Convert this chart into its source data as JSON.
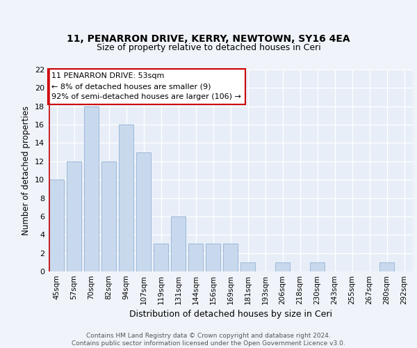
{
  "title1": "11, PENARRON DRIVE, KERRY, NEWTOWN, SY16 4EA",
  "title2": "Size of property relative to detached houses in Ceri",
  "xlabel": "Distribution of detached houses by size in Ceri",
  "ylabel": "Number of detached properties",
  "categories": [
    "45sqm",
    "57sqm",
    "70sqm",
    "82sqm",
    "94sqm",
    "107sqm",
    "119sqm",
    "131sqm",
    "144sqm",
    "156sqm",
    "169sqm",
    "181sqm",
    "193sqm",
    "206sqm",
    "218sqm",
    "230sqm",
    "243sqm",
    "255sqm",
    "267sqm",
    "280sqm",
    "292sqm"
  ],
  "values": [
    10,
    12,
    18,
    12,
    16,
    13,
    3,
    6,
    3,
    3,
    3,
    1,
    0,
    1,
    0,
    1,
    0,
    0,
    0,
    1,
    0
  ],
  "bar_color": "#c9d9ed",
  "bar_edge_color": "#9ab8d8",
  "annotation_text": "11 PENARRON DRIVE: 53sqm\n← 8% of detached houses are smaller (9)\n92% of semi-detached houses are larger (106) →",
  "annotation_box_color": "#ffffff",
  "annotation_box_edge": "#cc0000",
  "ylim": [
    0,
    22
  ],
  "yticks": [
    0,
    2,
    4,
    6,
    8,
    10,
    12,
    14,
    16,
    18,
    20,
    22
  ],
  "bg_color": "#f0f4fa",
  "plot_bg_color": "#e8eef8",
  "footer": "Contains HM Land Registry data © Crown copyright and database right 2024.\nContains public sector information licensed under the Open Government Licence v3.0.",
  "title1_fontsize": 10,
  "title2_fontsize": 9,
  "red_line_x": -0.425
}
